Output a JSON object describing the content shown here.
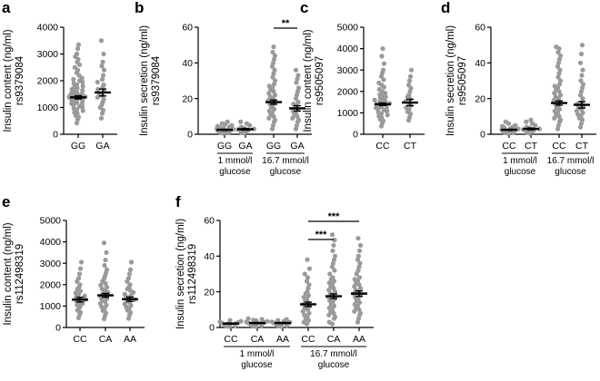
{
  "chart_data": [
    {
      "panel": "a",
      "type": "scatter",
      "ylabel": "Insulin content (ng/ml)",
      "ylabel2": "rs9379084",
      "ylim": [
        0,
        4000
      ],
      "yticks": [
        "0",
        "1000",
        "2000",
        "3000",
        "4000"
      ],
      "categories": [
        "GG",
        "GA"
      ],
      "means": [
        1380,
        1560
      ],
      "sem": [
        60,
        130
      ],
      "points": [
        {
          "category": "GG",
          "y": [
            420,
            560,
            640,
            700,
            780,
            820,
            880,
            920,
            960,
            1000,
            1040,
            1080,
            1120,
            1150,
            1180,
            1210,
            1240,
            1270,
            1300,
            1320,
            1350,
            1380,
            1400,
            1420,
            1450,
            1480,
            1500,
            1530,
            1560,
            1600,
            1640,
            1680,
            1720,
            1760,
            1800,
            1850,
            1900,
            1950,
            2000,
            2050,
            2100,
            2200,
            2300,
            2400,
            2500,
            2600,
            2700,
            2800,
            2900,
            3000,
            3200,
            3350
          ]
        },
        {
          "category": "GA",
          "y": [
            600,
            780,
            900,
            1000,
            1100,
            1200,
            1300,
            1380,
            1450,
            1520,
            1600,
            1680,
            1760,
            1850,
            1950,
            2050,
            2200,
            2400,
            2550,
            2700,
            3000,
            3500
          ]
        }
      ]
    },
    {
      "panel": "b",
      "type": "scatter",
      "ylabel": "Insulin secretion (ng/ml)",
      "ylabel2": "rs9379084",
      "ylim": [
        0,
        60
      ],
      "yticks": [
        "0",
        "20",
        "40",
        "60"
      ],
      "categories": [
        "GG",
        "GA",
        "GG",
        "GA"
      ],
      "groups": [
        {
          "line1": "1 mmol/l",
          "line2": "glucose"
        },
        {
          "line1": "16.7 mmol/l",
          "line2": "glucose"
        }
      ],
      "means": [
        2.5,
        2.8,
        18,
        14.5
      ],
      "sem": [
        0.3,
        0.5,
        1.2,
        1.5
      ],
      "significance": [
        {
          "from": 2,
          "to": 3,
          "label": "**"
        }
      ],
      "points": [
        {
          "category": "GG",
          "y": [
            0.5,
            0.8,
            1,
            1.2,
            1.5,
            1.8,
            2,
            2.2,
            2.5,
            2.8,
            3,
            3.2,
            3.5,
            4,
            4.5,
            5,
            5.5,
            6,
            7
          ]
        },
        {
          "category": "GA",
          "y": [
            0.6,
            1,
            1.4,
            1.8,
            2.2,
            2.6,
            3,
            3.5,
            4,
            5,
            6,
            7
          ]
        },
        {
          "category": "GG",
          "y": [
            3,
            5,
            7,
            8,
            9,
            10,
            11,
            12,
            13,
            14,
            15,
            16,
            17,
            18,
            19,
            20,
            21,
            22,
            23,
            24,
            25,
            26,
            27,
            28,
            30,
            32,
            34,
            36,
            38,
            40,
            42,
            44,
            46,
            49
          ]
        },
        {
          "category": "GA",
          "y": [
            3,
            5,
            7,
            8,
            9,
            10,
            11,
            12,
            13,
            14,
            15,
            16,
            17,
            18,
            20,
            22,
            24,
            26,
            29,
            31,
            33,
            36
          ]
        }
      ]
    },
    {
      "panel": "c",
      "type": "scatter",
      "ylabel": "Insulin content (ng/ml)",
      "ylabel2": "rs9505097",
      "ylim": [
        0,
        5000
      ],
      "yticks": [
        "0",
        "1000",
        "2000",
        "3000",
        "4000",
        "5000"
      ],
      "categories": [
        "CC",
        "CT"
      ],
      "means": [
        1400,
        1480
      ],
      "sem": [
        60,
        150
      ],
      "points": [
        {
          "category": "CC",
          "y": [
            380,
            520,
            620,
            700,
            780,
            840,
            900,
            960,
            1020,
            1080,
            1120,
            1160,
            1200,
            1240,
            1280,
            1320,
            1360,
            1400,
            1440,
            1480,
            1520,
            1560,
            1600,
            1650,
            1700,
            1750,
            1800,
            1860,
            1920,
            2000,
            2100,
            2200,
            2300,
            2400,
            2550,
            2700,
            2850,
            3000,
            3300,
            3650,
            4000
          ]
        },
        {
          "category": "CT",
          "y": [
            650,
            800,
            950,
            1050,
            1150,
            1250,
            1350,
            1450,
            1550,
            1650,
            1750,
            1850,
            2000,
            2150,
            2300,
            2500,
            2700,
            3000
          ]
        }
      ]
    },
    {
      "panel": "d",
      "type": "scatter",
      "ylabel": "Insulin secretion (ng/ml)",
      "ylabel2": "rs9505097",
      "ylim": [
        0,
        60
      ],
      "yticks": [
        "0",
        "20",
        "40",
        "60"
      ],
      "categories": [
        "CC",
        "CT",
        "CC",
        "CT"
      ],
      "groups": [
        {
          "line1": "1 mmol/l",
          "line2": "glucose"
        },
        {
          "line1": "16.7 mmol/l",
          "line2": "glucose"
        }
      ],
      "means": [
        2.5,
        3,
        17.5,
        16.5
      ],
      "sem": [
        0.3,
        0.5,
        1.2,
        1.8
      ],
      "points": [
        {
          "category": "CC",
          "y": [
            0.5,
            0.8,
            1,
            1.2,
            1.5,
            1.8,
            2,
            2.3,
            2.6,
            3,
            3.3,
            3.7,
            4,
            4.5,
            5,
            6,
            7
          ]
        },
        {
          "category": "CT",
          "y": [
            0.6,
            1,
            1.4,
            1.8,
            2.2,
            2.6,
            3,
            3.5,
            4,
            5,
            6,
            7,
            8
          ]
        },
        {
          "category": "CC",
          "y": [
            3,
            5,
            7,
            8,
            9,
            10,
            11,
            12,
            13,
            14,
            15,
            16,
            17,
            18,
            19,
            20,
            21,
            22,
            23,
            24,
            25,
            26,
            27,
            28,
            30,
            32,
            34,
            36,
            38,
            40,
            42,
            44,
            46,
            48,
            49
          ]
        },
        {
          "category": "CT",
          "y": [
            4,
            6,
            8,
            9,
            10,
            11,
            12,
            13,
            14,
            15,
            16,
            17,
            18,
            20,
            22,
            24,
            26,
            28,
            30,
            33,
            36,
            40,
            45,
            50
          ]
        }
      ]
    },
    {
      "panel": "e",
      "type": "scatter",
      "ylabel": "Insulin content (ng/ml)",
      "ylabel2": "rs112498319",
      "ylim": [
        0,
        5000
      ],
      "yticks": [
        "0",
        "1000",
        "2000",
        "3000",
        "4000",
        "5000"
      ],
      "categories": [
        "CC",
        "CA",
        "AA"
      ],
      "means": [
        1300,
        1500,
        1320
      ],
      "sem": [
        110,
        90,
        100
      ],
      "points": [
        {
          "category": "CC",
          "y": [
            450,
            600,
            700,
            800,
            900,
            980,
            1050,
            1120,
            1180,
            1240,
            1300,
            1360,
            1420,
            1480,
            1550,
            1620,
            1700,
            1800,
            1900,
            2000,
            2150,
            2300,
            2500,
            2750,
            3050
          ]
        },
        {
          "category": "CA",
          "y": [
            400,
            550,
            680,
            780,
            880,
            960,
            1040,
            1120,
            1200,
            1280,
            1350,
            1420,
            1490,
            1560,
            1640,
            1720,
            1800,
            1880,
            1970,
            2060,
            2160,
            2280,
            2400,
            2550,
            2700,
            2900,
            3150,
            3500,
            3950
          ]
        },
        {
          "category": "AA",
          "y": [
            420,
            580,
            700,
            800,
            880,
            960,
            1030,
            1100,
            1170,
            1240,
            1300,
            1360,
            1420,
            1490,
            1560,
            1640,
            1720,
            1800,
            1900,
            2000,
            2150,
            2300,
            2500,
            2700,
            3050
          ]
        }
      ]
    },
    {
      "panel": "f",
      "type": "scatter",
      "ylabel": "Insulin secretion (ng/ml)",
      "ylabel2": "rs112498319",
      "ylim": [
        0,
        60
      ],
      "yticks": [
        "0",
        "20",
        "40",
        "60"
      ],
      "categories": [
        "CC",
        "CA",
        "AA",
        "CC",
        "CA",
        "AA"
      ],
      "groups": [
        {
          "line1": "1 mmol/l",
          "line2": "glucose"
        },
        {
          "line1": "16.7 mmol/l",
          "line2": "glucose"
        }
      ],
      "means": [
        2.2,
        2.5,
        2.5,
        13,
        17.5,
        19
      ],
      "sem": [
        0.3,
        0.3,
        0.3,
        1.2,
        1.3,
        1.5
      ],
      "significance": [
        {
          "from": 3,
          "to": 5,
          "label": "***"
        },
        {
          "from": 3,
          "to": 4,
          "label": "***"
        }
      ],
      "points": [
        {
          "category": "CC",
          "y": [
            0.5,
            0.8,
            1,
            1.3,
            1.6,
            1.9,
            2.2,
            2.5,
            2.8,
            3.1,
            3.5,
            4
          ]
        },
        {
          "category": "CA",
          "y": [
            0.5,
            0.8,
            1,
            1.3,
            1.6,
            1.9,
            2.2,
            2.5,
            2.8,
            3.1,
            3.4,
            3.8,
            4.2,
            4.6,
            5
          ]
        },
        {
          "category": "AA",
          "y": [
            0.5,
            0.8,
            1.1,
            1.4,
            1.7,
            2,
            2.3,
            2.6,
            2.9,
            3.2,
            3.6,
            4,
            4.5
          ]
        },
        {
          "category": "CC",
          "y": [
            2,
            3,
            4,
            5,
            6,
            7,
            8,
            9,
            10,
            11,
            12,
            13,
            14,
            15,
            16,
            17,
            18,
            19,
            20,
            22,
            24,
            26,
            28,
            30,
            33,
            38
          ]
        },
        {
          "category": "CA",
          "y": [
            2,
            3,
            5,
            6,
            7,
            8,
            9,
            10,
            11,
            12,
            13,
            14,
            15,
            16,
            17,
            18,
            19,
            20,
            21,
            22,
            23,
            24,
            25,
            26,
            27,
            28,
            30,
            32,
            34,
            36,
            38,
            40,
            43,
            46,
            49,
            52
          ]
        },
        {
          "category": "AA",
          "y": [
            3,
            5,
            7,
            8,
            9,
            10,
            11,
            12,
            13,
            14,
            15,
            16,
            17,
            18,
            19,
            20,
            21,
            22,
            23,
            24,
            25,
            26,
            27,
            28,
            30,
            32,
            34,
            36,
            38,
            40,
            43,
            46,
            50
          ]
        }
      ]
    }
  ]
}
